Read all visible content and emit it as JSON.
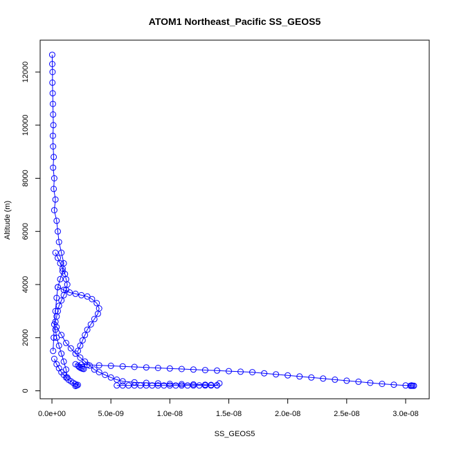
{
  "chart_data": {
    "type": "scatter",
    "title": "ATOM1 Northeast_Pacific SS_GEOS5",
    "xlabel": "SS_GEOS5",
    "ylabel": "Altitude (m)",
    "xlim": [
      -1e-09,
      3.2e-08
    ],
    "ylim": [
      -300,
      13200
    ],
    "x_ticks": [
      0,
      5e-09,
      1e-08,
      1.5e-08,
      2e-08,
      2.5e-08,
      3e-08
    ],
    "x_tick_labels": [
      "0.0e+00",
      "5.0e-09",
      "1.0e-08",
      "1.5e-08",
      "2.0e-08",
      "2.5e-08",
      "3.0e-08"
    ],
    "y_ticks": [
      0,
      2000,
      4000,
      6000,
      8000,
      10000,
      12000
    ],
    "y_tick_labels": [
      "0",
      "2000",
      "4000",
      "6000",
      "8000",
      "10000",
      "12000"
    ],
    "marker": "open-circle",
    "series_color": "#0000ff",
    "grid": false,
    "series": [
      {
        "x": [
          2e-11,
          3e-11,
          5e-11,
          4e-11,
          6e-11,
          8e-11,
          1e-10,
          1.2e-10,
          8e-11,
          1e-10,
          1.5e-10,
          1e-10,
          2e-10,
          1.5e-10,
          3e-10,
          2e-10,
          4e-10,
          5e-10,
          6e-10,
          8e-10,
          1e-09,
          9e-10,
          7e-10,
          5e-10,
          4e-10,
          3e-10,
          2e-10,
          1.5e-10,
          1e-10
        ],
        "y": [
          12650,
          12300,
          12000,
          11600,
          11200,
          10800,
          10400,
          10000,
          9600,
          9200,
          8800,
          8400,
          8000,
          7600,
          7200,
          6800,
          6400,
          6000,
          5600,
          5200,
          4800,
          4500,
          4200,
          3900,
          3500,
          3000,
          2500,
          2000,
          1500
        ]
      },
      {
        "x": [
          3e-10,
          5e-10,
          7e-10,
          9e-10,
          1.1e-09,
          1.2e-09,
          1.3e-09,
          1.2e-09,
          1e-09,
          8e-10,
          6e-10,
          5e-10,
          4e-10,
          3e-10,
          3e-10,
          4e-10,
          6e-10,
          8e-10,
          1e-09,
          1.2e-09,
          1.3e-09
        ],
        "y": [
          5200,
          5000,
          4800,
          4600,
          4400,
          4200,
          4000,
          3800,
          3600,
          3400,
          3200,
          3000,
          2800,
          2600,
          2300,
          2000,
          1700,
          1400,
          1100,
          800,
          500
        ]
      },
      {
        "x": [
          2e-10,
          4e-10,
          6e-10,
          8e-10,
          1e-09,
          1.2e-09,
          1.4e-09,
          1.6e-09,
          1.8e-09,
          2e-09,
          2.2e-09,
          2.1e-09,
          2e-09
        ],
        "y": [
          1200,
          1000,
          850,
          700,
          600,
          500,
          420,
          360,
          300,
          250,
          220,
          200,
          180
        ]
      },
      {
        "x": [
          5e-10,
          1e-09,
          1.5e-09,
          2e-09,
          2.5e-09,
          3e-09,
          3.4e-09,
          3.8e-09,
          4e-09,
          3.9e-09,
          3.6e-09,
          3.3e-09,
          3e-09,
          2.8e-09,
          2.6e-09,
          2.4e-09,
          2.2e-09
        ],
        "y": [
          3900,
          3800,
          3700,
          3650,
          3600,
          3550,
          3450,
          3300,
          3100,
          2900,
          2700,
          2500,
          2300,
          2100,
          1900,
          1700,
          1500
        ]
      },
      {
        "x": [
          4e-10,
          8e-10,
          1.2e-09,
          1.6e-09,
          2e-09,
          2.4e-09,
          2.8e-09,
          3.2e-09,
          3.6e-09,
          4e-09,
          4.5e-09,
          5e-09,
          5.5e-09,
          6e-09,
          7e-09,
          8e-09,
          9e-09,
          1e-08,
          1.1e-08,
          1.2e-08,
          1.3e-08,
          1.35e-08,
          1.4e-08,
          1.42e-08
        ],
        "y": [
          2400,
          2100,
          1800,
          1600,
          1400,
          1250,
          1100,
          950,
          800,
          700,
          600,
          500,
          420,
          360,
          320,
          300,
          280,
          260,
          250,
          240,
          230,
          220,
          210,
          280
        ]
      },
      {
        "x": [
          5.5e-09,
          6e-09,
          6.5e-09,
          7e-09,
          7.5e-09,
          8e-09,
          8.5e-09,
          9e-09,
          9.5e-09,
          1e-08,
          1.05e-08,
          1.1e-08,
          1.15e-08,
          1.2e-08,
          1.25e-08,
          1.3e-08,
          1.35e-08,
          1.4e-08
        ],
        "y": [
          200,
          200,
          200,
          200,
          200,
          200,
          200,
          200,
          200,
          200,
          200,
          200,
          200,
          200,
          200,
          200,
          200,
          200
        ]
      },
      {
        "x": [
          2e-09,
          2.5e-09,
          3e-09,
          4e-09,
          5e-09,
          6e-09,
          7e-09,
          8e-09,
          9e-09,
          1e-08,
          1.1e-08,
          1.2e-08,
          1.3e-08,
          1.4e-08,
          1.5e-08,
          1.6e-08,
          1.7e-08,
          1.8e-08,
          1.9e-08,
          2e-08,
          2.1e-08,
          2.2e-08,
          2.3e-08,
          2.4e-08,
          2.5e-08,
          2.6e-08,
          2.7e-08,
          2.8e-08,
          2.9e-08,
          3e-08,
          3.05e-08
        ],
        "y": [
          1000,
          990,
          980,
          960,
          940,
          920,
          900,
          880,
          860,
          840,
          820,
          800,
          780,
          760,
          740,
          720,
          700,
          660,
          620,
          580,
          540,
          500,
          460,
          420,
          380,
          340,
          300,
          260,
          230,
          200,
          200
        ]
      },
      {
        "x": [
          2.2e-09,
          2.3e-09,
          2.4e-09,
          2.5e-09,
          2.6e-09,
          2.7e-09
        ],
        "y": [
          950,
          900,
          870,
          850,
          830,
          820
        ]
      },
      {
        "x": [
          3.04e-08,
          3.05e-08,
          3.06e-08,
          3.07e-08
        ],
        "y": [
          190,
          190,
          190,
          190
        ]
      }
    ]
  }
}
